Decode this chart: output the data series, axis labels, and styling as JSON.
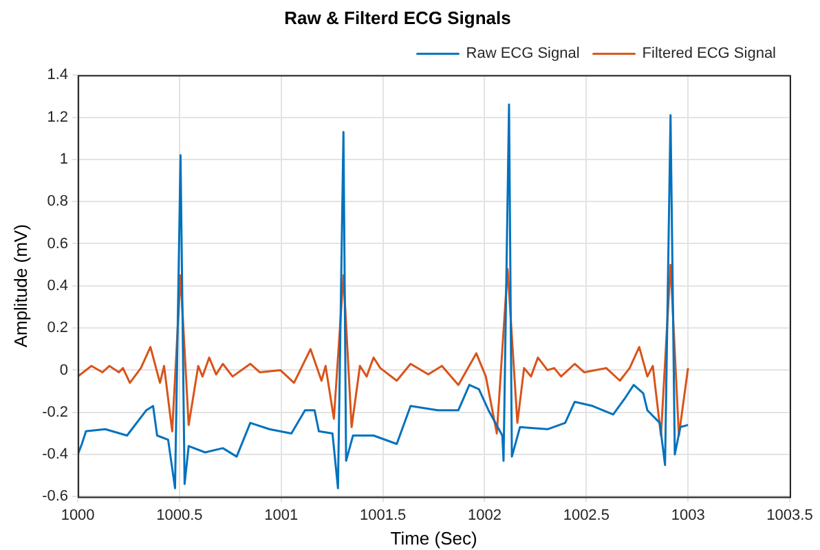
{
  "chart_data": {
    "type": "line",
    "title": "Raw & Filterd ECG Signals",
    "xlabel": "Time (Sec)",
    "ylabel": "Amplitude (mV)",
    "xlim": [
      1000,
      1003.5
    ],
    "xticks": [
      1000,
      1000.5,
      1001,
      1001.5,
      1002,
      1002.5,
      1003,
      1003.5
    ],
    "ylim": [
      -0.6,
      1.4
    ],
    "yticks": [
      -0.6,
      -0.4,
      -0.2,
      0,
      0.2,
      0.4,
      0.6,
      0.8,
      1,
      1.2,
      1.4
    ],
    "grid": true,
    "legend": "top right",
    "series": [
      {
        "name": "Raw ECG Signal",
        "color": "#0072bd",
        "x": [
          1000.0,
          1000.02,
          1000.04,
          1000.135,
          1000.242,
          1000.337,
          1000.37,
          1000.39,
          1000.444,
          1000.478,
          1000.505,
          1000.525,
          1000.545,
          1000.626,
          1000.713,
          1000.781,
          1000.848,
          1000.942,
          1001.05,
          1001.117,
          1001.164,
          1001.185,
          1001.252,
          1001.279,
          1001.306,
          1001.319,
          1001.353,
          1001.454,
          1001.568,
          1001.636,
          1001.77,
          1001.871,
          1001.925,
          1001.972,
          1002.019,
          1002.087,
          1002.093,
          1002.12,
          1002.134,
          1002.174,
          1002.309,
          1002.396,
          1002.443,
          1002.531,
          1002.632,
          1002.692,
          1002.733,
          1002.78,
          1002.8,
          1002.861,
          1002.887,
          1002.914,
          1002.935,
          1002.962,
          1003.0
        ],
        "values": [
          -0.4,
          -0.35,
          -0.29,
          -0.28,
          -0.31,
          -0.19,
          -0.17,
          -0.31,
          -0.33,
          -0.56,
          1.02,
          -0.54,
          -0.36,
          -0.39,
          -0.37,
          -0.41,
          -0.25,
          -0.28,
          -0.3,
          -0.19,
          -0.19,
          -0.29,
          -0.3,
          -0.56,
          1.13,
          -0.43,
          -0.31,
          -0.31,
          -0.35,
          -0.17,
          -0.19,
          -0.19,
          -0.07,
          -0.09,
          -0.19,
          -0.31,
          -0.43,
          1.26,
          -0.41,
          -0.27,
          -0.28,
          -0.25,
          -0.15,
          -0.17,
          -0.21,
          -0.13,
          -0.07,
          -0.11,
          -0.19,
          -0.25,
          -0.45,
          1.21,
          -0.4,
          -0.27,
          -0.26
        ]
      },
      {
        "name": "Filtered ECG Signal",
        "color": "#d95319",
        "x": [
          1000.0,
          1000.067,
          1000.121,
          1000.155,
          1000.202,
          1000.222,
          1000.256,
          1000.31,
          1000.357,
          1000.404,
          1000.424,
          1000.464,
          1000.505,
          1000.545,
          1000.592,
          1000.613,
          1000.646,
          1000.68,
          1000.713,
          1000.761,
          1000.848,
          1000.895,
          1000.996,
          1001.063,
          1001.144,
          1001.198,
          1001.218,
          1001.259,
          1001.306,
          1001.346,
          1001.387,
          1001.42,
          1001.454,
          1001.487,
          1001.568,
          1001.636,
          1001.723,
          1001.79,
          1001.871,
          1001.959,
          1002.006,
          1002.06,
          1002.113,
          1002.161,
          1002.194,
          1002.228,
          1002.262,
          1002.309,
          1002.342,
          1002.376,
          1002.443,
          1002.49,
          1002.598,
          1002.665,
          1002.713,
          1002.76,
          1002.8,
          1002.827,
          1002.867,
          1002.914,
          1002.955,
          1003.0
        ],
        "values": [
          -0.03,
          0.02,
          -0.01,
          0.02,
          -0.01,
          0.01,
          -0.06,
          0.01,
          0.11,
          -0.06,
          0.02,
          -0.29,
          0.45,
          -0.26,
          0.02,
          -0.03,
          0.06,
          -0.02,
          0.03,
          -0.03,
          0.03,
          -0.01,
          0.0,
          -0.06,
          0.1,
          -0.05,
          0.02,
          -0.23,
          0.45,
          -0.27,
          0.02,
          -0.03,
          0.06,
          0.01,
          -0.05,
          0.03,
          -0.02,
          0.02,
          -0.07,
          0.08,
          -0.03,
          -0.3,
          0.48,
          -0.25,
          0.01,
          -0.03,
          0.06,
          0.0,
          0.01,
          -0.03,
          0.03,
          -0.01,
          0.01,
          -0.05,
          0.01,
          0.11,
          -0.03,
          0.02,
          -0.31,
          0.5,
          -0.31,
          0.01
        ]
      }
    ]
  }
}
